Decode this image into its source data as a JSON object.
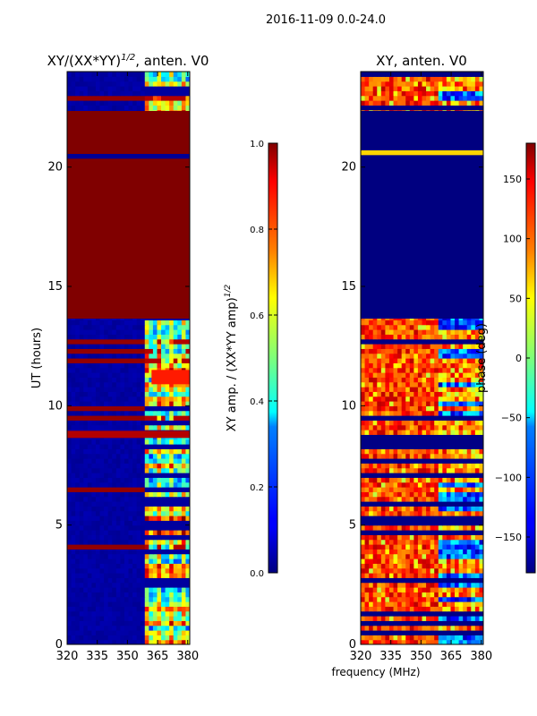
{
  "suptitle": "2016-11-09 0.0-24.0",
  "shared_xlabel": "frequency (MHz)",
  "colors": {
    "axis": "#000000",
    "background": "#ffffff",
    "dark_red": "#800000",
    "dark_blue": "#00007f"
  },
  "chart_data": [
    {
      "type": "heatmap",
      "title": "XY/(XX*YY)^1/2, anten. V0",
      "title_main": "XY/(XX*YY)",
      "title_sup": "1/2",
      "title_tail": ", anten. V0",
      "xlabel": "",
      "ylabel": "UT (hours)",
      "xlim": [
        320,
        381
      ],
      "ylim": [
        0,
        24
      ],
      "xticks": [
        320,
        335,
        350,
        365,
        380
      ],
      "yticks": [
        0,
        5,
        10,
        15,
        20
      ],
      "colormap": "jet",
      "colorbar": {
        "label": "XY amp. / (XX*YY amp)^1/2",
        "label_main": "XY amp. / (XX*YY amp)",
        "label_sup": "1/2",
        "range": [
          0.0,
          1.0
        ],
        "ticks": [
          "0.0",
          "0.2",
          "0.4",
          "0.6",
          "0.8",
          "1.0"
        ]
      },
      "blocks": [
        {
          "ut_start": 13.65,
          "ut_end": 22.35,
          "freq_start": 320,
          "freq_end": 381,
          "value": 1.0
        },
        {
          "ut_start": 20.35,
          "ut_end": 20.55,
          "freq_start": 320,
          "freq_end": 381,
          "value": 0.02
        },
        {
          "ut_start": 8.65,
          "ut_end": 8.95,
          "freq_start": 320,
          "freq_end": 381,
          "value": 0.95
        },
        {
          "ut_start": 10.9,
          "ut_end": 11.5,
          "freq_start": 362,
          "freq_end": 381,
          "value": 0.85
        }
      ],
      "notes": "Low-frequency band 320-358 MHz near 0 with red RFI lines; high band 360-381 MHz variable 0.2-0.8"
    },
    {
      "type": "heatmap",
      "title": "XY, anten. V0",
      "xlabel": "frequency (MHz)",
      "ylabel": "",
      "xlim": [
        320,
        381
      ],
      "ylim": [
        0,
        24
      ],
      "xticks": [
        320,
        335,
        350,
        365,
        380
      ],
      "yticks": [
        0,
        5,
        10,
        15,
        20
      ],
      "colormap": "jet",
      "colorbar": {
        "label": "phase (deg)",
        "range": [
          -180,
          180
        ],
        "ticks": [
          "−150",
          "−100",
          "−50",
          "0",
          "50",
          "100",
          "150"
        ],
        "tick_values": [
          -150,
          -100,
          -50,
          0,
          50,
          100,
          150
        ]
      },
      "blocks": [
        {
          "ut_start": 13.65,
          "ut_end": 22.35,
          "freq_start": 320,
          "freq_end": 381,
          "value": -180
        },
        {
          "ut_start": 20.5,
          "ut_end": 20.7,
          "freq_start": 320,
          "freq_end": 381,
          "value": 60
        }
      ],
      "notes": "Phase mostly 90-150 deg (orange/red) in 320-358 MHz, mixed -150..50 deg near 360-381 MHz"
    }
  ]
}
